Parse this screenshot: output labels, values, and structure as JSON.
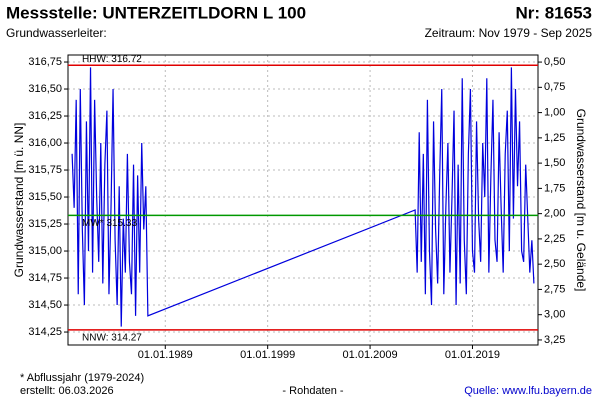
{
  "chart_data": {
    "type": "line",
    "title": "Messstelle: UNTERZEITLDORN L 100",
    "number": "Nr: 81653",
    "subtitle": "Grundwasserleiter:",
    "period": "Zeitraum: Nov 1979 - Sep 2025",
    "ylabel": "Grundwasserstand [m ü. NN]",
    "y2label": "Grundwasserstand [m u. Gelände]",
    "footnote": "* Abflussjahr (1979-2024)",
    "created": "erstellt:  06.03.2026",
    "rawdata": "- Rohdaten -",
    "source": "Quelle: www.lfu.bayern.de",
    "grid": true,
    "xlim": [
      1979.5,
      2025.4
    ],
    "xticks": [
      {
        "value": 1989,
        "label": "01.01.1989"
      },
      {
        "value": 1999,
        "label": "01.01.1999"
      },
      {
        "value": 2009,
        "label": "01.01.2009"
      },
      {
        "value": 2019,
        "label": "01.01.2019"
      }
    ],
    "ylim": [
      314.13,
      316.815
    ],
    "yticks": [
      {
        "value": 314.25,
        "label": "314,25"
      },
      {
        "value": 314.5,
        "label": "314,50"
      },
      {
        "value": 314.75,
        "label": "314,75"
      },
      {
        "value": 315,
        "label": "315,00"
      },
      {
        "value": 315.25,
        "label": "315,25"
      },
      {
        "value": 315.5,
        "label": "315,50"
      },
      {
        "value": 315.75,
        "label": "315,75"
      },
      {
        "value": 316,
        "label": "316,00"
      },
      {
        "value": 316.25,
        "label": "316,25"
      },
      {
        "value": 316.5,
        "label": "316,50"
      },
      {
        "value": 316.75,
        "label": "316,75"
      }
    ],
    "y2lim": [
      3.3,
      0.43
    ],
    "y2ticks": [
      {
        "value": 0.5,
        "label": "0,50"
      },
      {
        "value": 0.75,
        "label": "0,75"
      },
      {
        "value": 1,
        "label": "1,00"
      },
      {
        "value": 1.25,
        "label": "1,25"
      },
      {
        "value": 1.5,
        "label": "1,50"
      },
      {
        "value": 1.75,
        "label": "1,75"
      },
      {
        "value": 2,
        "label": "2,00"
      },
      {
        "value": 2.25,
        "label": "2,25"
      },
      {
        "value": 2.5,
        "label": "2,50"
      },
      {
        "value": 2.75,
        "label": "2,75"
      },
      {
        "value": 3,
        "label": "3,00"
      },
      {
        "value": 3.25,
        "label": "3,25"
      }
    ],
    "reference_lines": [
      {
        "label": "HHW: 316.72",
        "value": 316.72,
        "color": "#e00000"
      },
      {
        "label": "MW* 315.33",
        "value": 315.33,
        "color": "#009900"
      },
      {
        "label": "NNW: 314.27",
        "value": 314.27,
        "color": "#e00000"
      }
    ],
    "x": [
      1979.9,
      1980.1,
      1980.3,
      1980.5,
      1980.7,
      1980.9,
      1981.1,
      1981.3,
      1981.5,
      1981.7,
      1981.9,
      1982.1,
      1982.3,
      1982.5,
      1982.7,
      1982.9,
      1983.1,
      1983.3,
      1983.5,
      1983.7,
      1983.9,
      1984.1,
      1984.3,
      1984.5,
      1984.7,
      1984.9,
      1985.1,
      1985.3,
      1985.5,
      1985.7,
      1985.9,
      1986.1,
      1986.3,
      1986.5,
      1986.7,
      1986.9,
      1987.1,
      1987.3,
      2013.4,
      2013.6,
      2013.8,
      2014.0,
      2014.2,
      2014.4,
      2014.6,
      2014.8,
      2015.0,
      2015.2,
      2015.4,
      2015.6,
      2015.8,
      2016.0,
      2016.2,
      2016.4,
      2016.6,
      2016.8,
      2017.0,
      2017.2,
      2017.4,
      2017.6,
      2017.8,
      2018.0,
      2018.2,
      2018.4,
      2018.6,
      2018.8,
      2019.0,
      2019.2,
      2019.4,
      2019.6,
      2019.8,
      2020.0,
      2020.2,
      2020.4,
      2020.6,
      2020.8,
      2021.0,
      2021.2,
      2021.4,
      2021.6,
      2021.8,
      2022.0,
      2022.2,
      2022.4,
      2022.6,
      2022.8,
      2023.0,
      2023.2,
      2023.4,
      2023.6,
      2023.8,
      2024.0,
      2024.2,
      2024.4,
      2024.6,
      2024.8,
      2025.0
    ],
    "series": [
      {
        "color": "#0000dd",
        "values": [
          315.9,
          315.4,
          316.4,
          314.6,
          316.5,
          315.2,
          314.5,
          316.2,
          315.0,
          316.7,
          314.8,
          316.4,
          315.5,
          314.9,
          316.0,
          314.7,
          315.8,
          316.3,
          314.6,
          315.4,
          316.5,
          315.1,
          314.5,
          315.6,
          314.3,
          315.3,
          314.8,
          315.9,
          314.9,
          314.6,
          315.8,
          314.4,
          315.7,
          314.8,
          316.0,
          315.2,
          315.6,
          314.4,
          315.38,
          314.8,
          316.1,
          314.9,
          315.9,
          314.6,
          316.4,
          315.0,
          314.5,
          316.2,
          315.2,
          314.7,
          315.7,
          316.5,
          314.6,
          315.4,
          316.0,
          314.8,
          315.5,
          316.3,
          314.5,
          315.8,
          314.7,
          316.6,
          315.1,
          314.6,
          315.9,
          316.5,
          315.0,
          314.8,
          316.2,
          315.3,
          314.9,
          316.0,
          315.5,
          316.6,
          314.8,
          315.7,
          316.4,
          315.1,
          314.9,
          316.1,
          315.4,
          314.8,
          315.9,
          316.3,
          315.0,
          316.7,
          315.3,
          316.5,
          315.6,
          316.2,
          315.0,
          314.9,
          315.8,
          315.3,
          314.8,
          315.1,
          314.7
        ]
      }
    ]
  }
}
